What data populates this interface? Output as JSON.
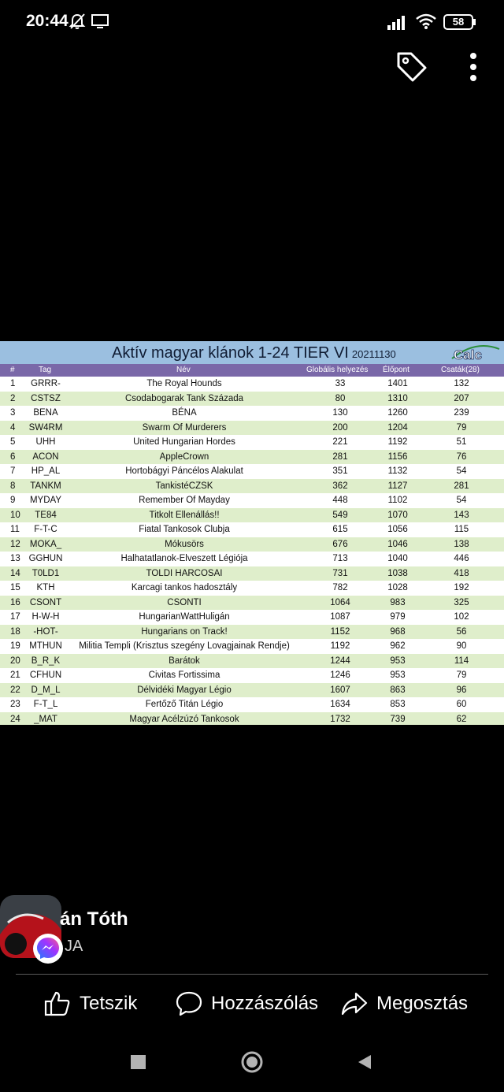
{
  "status_bar": {
    "time": "20:44",
    "battery": "58"
  },
  "image": {
    "title": "Aktív magyar klánok 1-24 TIER VI",
    "date": "20211130",
    "logo_text": "Calc",
    "columns": [
      "#",
      "Tag",
      "Név",
      "Globális helyezés",
      "Élőpont",
      "Csaták(28)"
    ],
    "rows": [
      [
        "1",
        "GRRR-",
        "The Royal Hounds",
        "33",
        "1401",
        "132"
      ],
      [
        "2",
        "CSTSZ",
        "Csodabogarak Tank Százada",
        "80",
        "1310",
        "207"
      ],
      [
        "3",
        "BENA",
        "BÉNA",
        "130",
        "1260",
        "239"
      ],
      [
        "4",
        "SW4RM",
        "Swarm Of Murderers",
        "200",
        "1204",
        "79"
      ],
      [
        "5",
        "UHH",
        "United Hungarian Hordes",
        "221",
        "1192",
        "51"
      ],
      [
        "6",
        "ACON",
        "AppleCrown",
        "281",
        "1156",
        "76"
      ],
      [
        "7",
        "HP_AL",
        "Hortobágyi Páncélos Alakulat",
        "351",
        "1132",
        "54"
      ],
      [
        "8",
        "TANKM",
        "TankistéCZSK",
        "362",
        "1127",
        "281"
      ],
      [
        "9",
        "MYDAY",
        "Remember Of Mayday",
        "448",
        "1102",
        "54"
      ],
      [
        "10",
        "TE84",
        "Titkolt Ellenállás!!",
        "549",
        "1070",
        "143"
      ],
      [
        "11",
        "F-T-C",
        "Fiatal Tankosok Clubja",
        "615",
        "1056",
        "115"
      ],
      [
        "12",
        "MOKA_",
        "Mókusörs",
        "676",
        "1046",
        "138"
      ],
      [
        "13",
        "GGHUN",
        "Halhatatlanok-Elveszett Légiója",
        "713",
        "1040",
        "446"
      ],
      [
        "14",
        "T0LD1",
        "TOLDI HARCOSAI",
        "731",
        "1038",
        "418"
      ],
      [
        "15",
        "KTH",
        "Karcagi tankos hadosztály",
        "782",
        "1028",
        "192"
      ],
      [
        "16",
        "CSONT",
        "CSONTI",
        "1064",
        "983",
        "325"
      ],
      [
        "17",
        "H-W-H",
        "HungarianWattHuligán",
        "1087",
        "979",
        "102"
      ],
      [
        "18",
        "-HOT-",
        "Hungarians on Track!",
        "1152",
        "968",
        "56"
      ],
      [
        "19",
        "MTHUN",
        "Militia Templi (Krisztus szegény Lovagjainak Rendje)",
        "1192",
        "962",
        "90"
      ],
      [
        "20",
        "B_R_K",
        "Barátok",
        "1244",
        "953",
        "114"
      ],
      [
        "21",
        "CFHUN",
        "Civitas Fortissima",
        "1246",
        "953",
        "79"
      ],
      [
        "22",
        "D_M_L",
        "Délvidéki Magyar Légio",
        "1607",
        "863",
        "96"
      ],
      [
        "23",
        "F-T_L",
        "Fertőző Titán Légio",
        "1634",
        "853",
        "60"
      ],
      [
        "24",
        "_MAT",
        "Magyar Acélzúzó Tankosok",
        "1732",
        "739",
        "62"
      ]
    ]
  },
  "post": {
    "author_name": "án Tóth",
    "author_sub": "JA"
  },
  "actions": {
    "like_label": "Tetszik",
    "comment_label": "Hozzászólás",
    "share_label": "Megosztás"
  },
  "colors": {
    "title_bar": "#9bbfe0",
    "header_row": "#7a68a8",
    "row_alt": "#dfeecb",
    "messenger": "#a033ff"
  }
}
